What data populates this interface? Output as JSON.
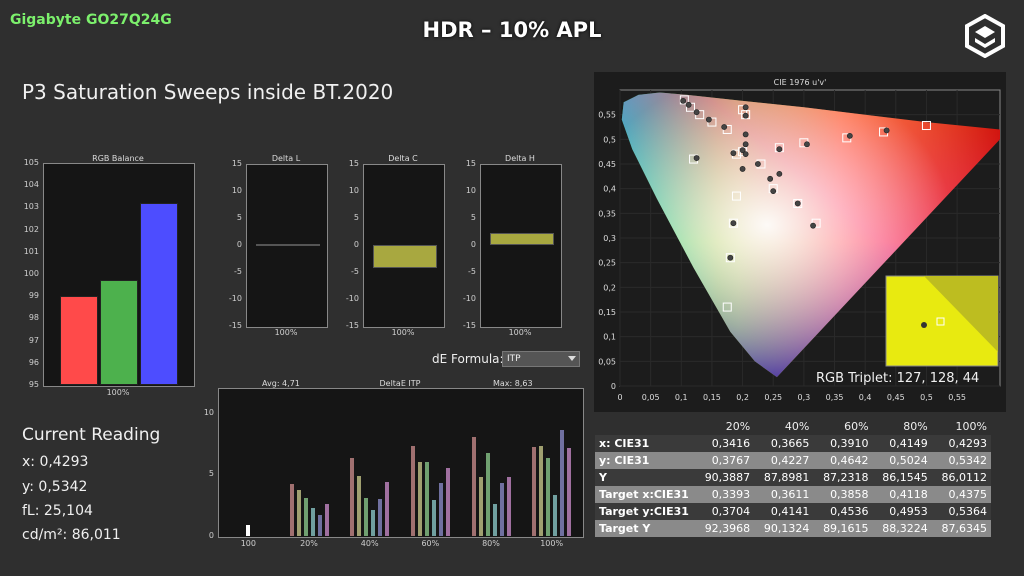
{
  "header": {
    "brand": "Gigabyte GO27Q24G",
    "title": "HDR – 10% APL",
    "page_title": "P3 Saturation Sweeps inside BT.2020"
  },
  "reading": {
    "title": "Current Reading",
    "x": "x: 0,4293",
    "y": "y: 0,5342",
    "fl": "fL: 25,104",
    "cd": "cd/m²: 86,011"
  },
  "rgb_balance": {
    "title": "RGB Balance",
    "yticks": [
      "105",
      "104",
      "103",
      "102",
      "101",
      "100",
      "99",
      "98",
      "97",
      "96",
      "95"
    ],
    "xlabel": "100%",
    "ylim": [
      95,
      105
    ],
    "values": [
      99.0,
      99.75,
      103.2
    ],
    "colors": [
      "#ff4a4a",
      "#4db14d",
      "#4d4dff"
    ]
  },
  "delta_l": {
    "title": "Delta L",
    "value": 0.0,
    "xlabel": "100%"
  },
  "delta_c": {
    "title": "Delta C",
    "value": -4.2,
    "xlabel": "100%"
  },
  "delta_h": {
    "title": "Delta H",
    "value": 2.3,
    "xlabel": "100%"
  },
  "delta_yticks": [
    "15",
    "10",
    "5",
    "0",
    "-5",
    "-10",
    "-15"
  ],
  "formula": {
    "label": "dE Formula:",
    "value": "ITP"
  },
  "deltae": {
    "title": "DeltaE ITP",
    "avg": "Avg: 4,71",
    "max": "Max: 8,63",
    "yticks": [
      "10",
      "5",
      "0"
    ],
    "ylim": [
      0,
      12
    ],
    "groups": [
      "100",
      "20%",
      "40%",
      "60%",
      "80%",
      "100%"
    ],
    "colors": [
      "#a07070",
      "#a0a070",
      "#70a070",
      "#70a0a0",
      "#7070a0",
      "#a070a0"
    ],
    "values": [
      [
        0.9
      ],
      [
        4.2,
        3.7,
        3.1,
        2.3,
        1.7,
        2.6
      ],
      [
        6.3,
        4.9,
        3.1,
        2.1,
        3.0,
        4.4
      ],
      [
        7.3,
        6.0,
        6.0,
        2.9,
        4.3,
        5.5
      ],
      [
        8.0,
        4.8,
        6.7,
        2.6,
        4.3,
        4.8
      ],
      [
        7.2,
        7.3,
        6.3,
        3.3,
        8.6,
        7.1
      ]
    ]
  },
  "cie": {
    "title": "CIE 1976 u'v'",
    "xticks": [
      "0",
      "0,05",
      "0,1",
      "0,15",
      "0,2",
      "0,25",
      "0,3",
      "0,35",
      "0,4",
      "0,45",
      "0,5",
      "0,55"
    ],
    "yticks": [
      "0,55",
      "0,5",
      "0,45",
      "0,4",
      "0,35",
      "0,3",
      "0,25",
      "0,2",
      "0,15",
      "0,1",
      "0,05",
      "0"
    ],
    "rgb_triplet": "RGB Triplet: 127, 128, 44",
    "targets": [
      [
        0.105,
        0.58
      ],
      [
        0.115,
        0.565
      ],
      [
        0.13,
        0.55
      ],
      [
        0.15,
        0.535
      ],
      [
        0.175,
        0.52
      ],
      [
        0.2,
        0.56
      ],
      [
        0.205,
        0.55
      ],
      [
        0.2,
        0.475
      ],
      [
        0.12,
        0.46
      ],
      [
        0.19,
        0.47
      ],
      [
        0.23,
        0.45
      ],
      [
        0.26,
        0.483
      ],
      [
        0.3,
        0.493
      ],
      [
        0.37,
        0.503
      ],
      [
        0.43,
        0.515
      ],
      [
        0.5,
        0.528
      ],
      [
        0.25,
        0.4
      ],
      [
        0.29,
        0.37
      ],
      [
        0.32,
        0.33
      ],
      [
        0.19,
        0.385
      ],
      [
        0.185,
        0.33
      ],
      [
        0.18,
        0.26
      ],
      [
        0.175,
        0.16
      ]
    ],
    "measured": [
      [
        0.103,
        0.578
      ],
      [
        0.112,
        0.57
      ],
      [
        0.125,
        0.555
      ],
      [
        0.145,
        0.54
      ],
      [
        0.17,
        0.525
      ],
      [
        0.205,
        0.565
      ],
      [
        0.205,
        0.548
      ],
      [
        0.2,
        0.478
      ],
      [
        0.125,
        0.462
      ],
      [
        0.185,
        0.472
      ],
      [
        0.225,
        0.45
      ],
      [
        0.26,
        0.48
      ],
      [
        0.305,
        0.49
      ],
      [
        0.375,
        0.507
      ],
      [
        0.435,
        0.518
      ],
      [
        0.205,
        0.51
      ],
      [
        0.205,
        0.49
      ],
      [
        0.205,
        0.47
      ],
      [
        0.2,
        0.44
      ],
      [
        0.245,
        0.42
      ],
      [
        0.26,
        0.43
      ],
      [
        0.25,
        0.395
      ],
      [
        0.29,
        0.37
      ],
      [
        0.315,
        0.325
      ],
      [
        0.185,
        0.33
      ],
      [
        0.18,
        0.26
      ]
    ]
  },
  "table": {
    "headers": [
      "",
      "20%",
      "40%",
      "60%",
      "80%",
      "100%"
    ],
    "rows": [
      {
        "label": "x: CIE31",
        "values": [
          "0,3416",
          "0,3665",
          "0,3910",
          "0,4149",
          "0,4293"
        ]
      },
      {
        "label": "y: CIE31",
        "values": [
          "0,3767",
          "0,4227",
          "0,4642",
          "0,5024",
          "0,5342"
        ]
      },
      {
        "label": "Y",
        "values": [
          "90,3887",
          "87,8981",
          "87,2318",
          "86,1545",
          "86,0112"
        ]
      },
      {
        "label": "Target x:CIE31",
        "values": [
          "0,3393",
          "0,3611",
          "0,3858",
          "0,4118",
          "0,4375"
        ]
      },
      {
        "label": "Target y:CIE31",
        "values": [
          "0,3704",
          "0,4141",
          "0,4536",
          "0,4953",
          "0,5364"
        ]
      },
      {
        "label": "Target Y",
        "values": [
          "92,3968",
          "90,1324",
          "89,1615",
          "88,3224",
          "87,6345"
        ]
      }
    ]
  }
}
